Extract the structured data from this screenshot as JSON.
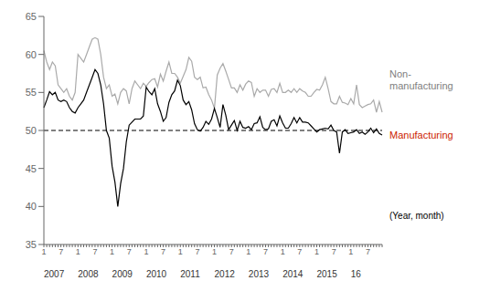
{
  "chart_data": {
    "type": "line",
    "x_label": "(Year, month)",
    "x_label_color": "#000000",
    "categories": [
      "1",
      null,
      null,
      null,
      null,
      null,
      "7",
      null,
      null,
      null,
      null,
      null,
      "1",
      null,
      null,
      null,
      null,
      null,
      "7",
      null,
      null,
      null,
      null,
      null,
      "1",
      null,
      null,
      null,
      null,
      null,
      "7",
      null,
      null,
      null,
      null,
      null,
      "1",
      null,
      null,
      null,
      null,
      null,
      "7",
      null,
      null,
      null,
      null,
      null,
      "1",
      null,
      null,
      null,
      null,
      null,
      "7",
      null,
      null,
      null,
      null,
      null,
      "1",
      null,
      null,
      null,
      null,
      null,
      "7",
      null,
      null,
      null,
      null,
      null,
      "1",
      null,
      null,
      null,
      null,
      null,
      "7",
      null,
      null,
      null,
      null,
      null,
      "1",
      null,
      null,
      null,
      null,
      null,
      "7",
      null,
      null,
      null,
      null,
      null,
      "1",
      null,
      null,
      null,
      null,
      null,
      "7",
      null,
      null,
      null,
      null,
      null,
      "1",
      null,
      null,
      null,
      null,
      null,
      "7",
      null,
      null,
      null,
      null,
      null
    ],
    "group_labels": [
      {
        "index": 0,
        "label": "2007"
      },
      {
        "index": 12,
        "label": "2008"
      },
      {
        "index": 24,
        "label": "2009"
      },
      {
        "index": 36,
        "label": "2010"
      },
      {
        "index": 48,
        "label": "2011"
      },
      {
        "index": 60,
        "label": "2012"
      },
      {
        "index": 72,
        "label": "2013"
      },
      {
        "index": 84,
        "label": "2014"
      },
      {
        "index": 96,
        "label": "2015"
      },
      {
        "index": 108,
        "label": "16"
      }
    ],
    "series": [
      {
        "name": "Non-\nmanufacturing",
        "color": "#aaaaaa",
        "label_color": "#808080",
        "values": [
          60.5,
          59.0,
          58.0,
          59.0,
          58.5,
          56.0,
          55.5,
          55.0,
          55.5,
          54.5,
          54.0,
          55.0,
          60.0,
          59.5,
          59.0,
          60.0,
          61.0,
          62.0,
          62.2,
          62.0,
          60.0,
          57.0,
          55.5,
          56.0,
          54.5,
          54.8,
          53.5,
          55.0,
          55.5,
          55.2,
          53.5,
          55.5,
          56.5,
          56.0,
          55.5,
          56.2,
          55.8,
          56.3,
          56.7,
          56.8,
          55.7,
          57.4,
          56.5,
          57.8,
          59.0,
          57.5,
          57.5,
          57.0,
          56.2,
          57.1,
          58.0,
          59.6,
          59.1,
          57.0,
          56.7,
          57.0,
          55.6,
          55.7,
          54.7,
          54.0,
          52.9,
          57.3,
          58.2,
          58.8,
          57.8,
          56.7,
          55.6,
          55.6,
          55.0,
          56.0,
          55.3,
          56.1,
          56.5,
          56.3,
          54.5,
          55.5,
          55.0,
          55.3,
          55.3,
          54.5,
          55.4,
          55.5,
          55.0,
          56.2,
          55.0,
          55.0,
          55.3,
          55.0,
          55.5,
          55.0,
          55.5,
          55.2,
          55.0,
          54.5,
          54.5,
          55.0,
          55.4,
          55.3,
          56.0,
          57.0,
          55.5,
          53.8,
          53.5,
          53.5,
          54.5,
          53.7,
          53.6,
          53.4,
          54.2,
          53.5,
          56.0,
          53.4,
          53.0,
          53.2,
          53.4,
          53.5,
          54.0,
          52.4,
          53.8,
          52.4
        ]
      },
      {
        "name": "Manufacturing",
        "color": "#000000",
        "label_color": "#cc2200",
        "values": [
          53.0,
          54.0,
          55.1,
          54.7,
          55.0,
          54.0,
          53.8,
          54.0,
          53.8,
          53.0,
          52.5,
          52.3,
          53.0,
          53.5,
          54.0,
          55.0,
          56.0,
          57.0,
          58.0,
          57.5,
          56.0,
          53.5,
          50.0,
          49.0,
          45.3,
          43.2,
          40.0,
          43.0,
          45.0,
          48.5,
          50.7,
          51.1,
          51.5,
          51.5,
          51.5,
          51.9,
          55.7,
          55.1,
          54.7,
          55.5,
          53.5,
          52.5,
          51.2,
          51.7,
          53.7,
          54.7,
          55.2,
          56.6,
          55.9,
          54.0,
          53.4,
          53.8,
          52.7,
          50.9,
          50.1,
          49.9,
          50.4,
          51.2,
          50.8,
          51.5,
          52.9,
          51.7,
          50.4,
          53.4,
          52.0,
          50.1,
          50.7,
          51.3,
          50.0,
          51.2,
          50.4,
          50.3,
          50.5,
          50.1,
          50.9,
          51.0,
          51.8,
          50.4,
          50.1,
          50.2,
          51.2,
          51.4,
          50.6,
          51.9,
          51.0,
          50.3,
          50.3,
          50.9,
          51.7,
          51.0,
          51.7,
          51.1,
          51.1,
          51.0,
          50.6,
          50.2,
          49.8,
          50.1,
          50.2,
          50.3,
          50.2,
          50.7,
          50.0,
          49.8,
          47.0,
          49.8,
          50.1,
          49.6,
          49.7,
          49.8,
          50.1,
          49.6,
          49.8,
          49.5,
          49.8,
          50.3,
          49.7,
          50.2,
          49.6,
          49.4
        ]
      }
    ],
    "ylim": [
      35,
      65
    ],
    "yticks": [
      35,
      40,
      45,
      50,
      55,
      60,
      65
    ],
    "reference_lines": [
      {
        "y": 50,
        "color": "#000000",
        "line_style": "dashed"
      }
    ],
    "grid": false
  }
}
